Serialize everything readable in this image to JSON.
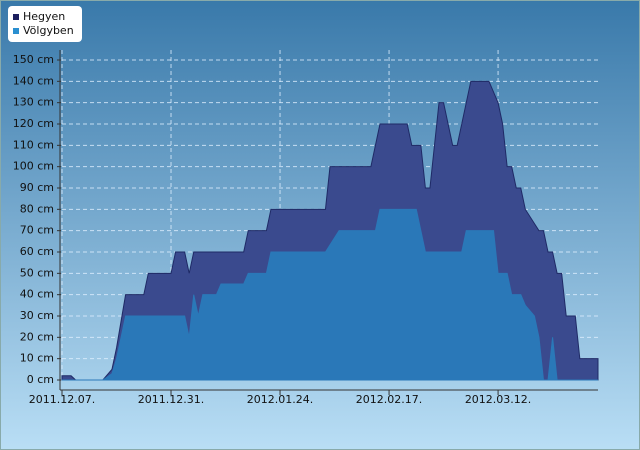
{
  "chart_data": {
    "type": "area",
    "series": [
      {
        "name": "Hegyen",
        "color": "#3a4a8e",
        "line_color": "#1f2a66",
        "legend_color": "#1b1f5e",
        "x": [
          "2011.12.07.",
          "2011.12.09.",
          "2011.12.10.",
          "2011.12.16.",
          "2011.12.18.",
          "2011.12.19.",
          "2011.12.21.",
          "2011.12.25.",
          "2011.12.26.",
          "2011.12.31.",
          "2012.01.01.",
          "2012.01.03.",
          "2012.01.04.",
          "2012.01.05.",
          "2012.01.16.",
          "2012.01.17.",
          "2012.01.21.",
          "2012.01.22.",
          "2012.02.03.",
          "2012.02.04.",
          "2012.02.13.",
          "2012.02.15.",
          "2012.02.21.",
          "2012.02.22.",
          "2012.02.24.",
          "2012.02.25.",
          "2012.02.26.",
          "2012.02.28.",
          "2012.02.29.",
          "2012.03.02.",
          "2012.03.03.",
          "2012.03.06.",
          "2012.03.10.",
          "2012.03.12.",
          "2012.03.13.",
          "2012.03.14.",
          "2012.03.15.",
          "2012.03.16.",
          "2012.03.17.",
          "2012.03.18.",
          "2012.03.21.",
          "2012.03.22.",
          "2012.03.23.",
          "2012.03.24.",
          "2012.03.25.",
          "2012.03.26.",
          "2012.03.27.",
          "2012.03.29.",
          "2012.03.30.",
          "2012.04.03."
        ],
        "values": [
          2,
          2,
          0,
          0,
          5,
          15,
          40,
          40,
          50,
          50,
          60,
          60,
          50,
          60,
          60,
          70,
          70,
          80,
          80,
          100,
          100,
          120,
          120,
          110,
          110,
          90,
          90,
          130,
          130,
          110,
          110,
          140,
          140,
          130,
          120,
          100,
          100,
          90,
          90,
          80,
          70,
          70,
          60,
          60,
          50,
          50,
          30,
          30,
          10,
          10
        ]
      },
      {
        "name": "Völgyben",
        "color": "#2a78b8",
        "line_color": "#2a78b8",
        "legend_color": "#2a8fd0",
        "x": [
          "2011.12.07.",
          "2011.12.16.",
          "2011.12.18.",
          "2011.12.19.",
          "2011.12.21.",
          "2012.01.03.",
          "2012.01.04.",
          "2012.01.05.",
          "2012.01.06.",
          "2012.01.07.",
          "2012.01.10.",
          "2012.01.11.",
          "2012.01.16.",
          "2012.01.17.",
          "2012.01.21.",
          "2012.01.22.",
          "2012.02.03.",
          "2012.02.06.",
          "2012.02.14.",
          "2012.02.15.",
          "2012.02.23.",
          "2012.02.25.",
          "2012.03.04.",
          "2012.03.05.",
          "2012.03.11.",
          "2012.03.12.",
          "2012.03.14.",
          "2012.03.15.",
          "2012.03.17.",
          "2012.03.18.",
          "2012.03.20.",
          "2012.03.21.",
          "2012.03.22.",
          "2012.03.23.",
          "2012.03.24.",
          "2012.03.25.",
          "2012.04.03."
        ],
        "values": [
          0,
          0,
          3,
          10,
          30,
          30,
          20,
          40,
          30,
          40,
          40,
          45,
          45,
          50,
          50,
          60,
          60,
          70,
          70,
          80,
          80,
          60,
          60,
          70,
          70,
          50,
          50,
          40,
          40,
          35,
          30,
          20,
          0,
          0,
          20,
          0,
          0
        ]
      }
    ],
    "xlim": [
      "2011.12.07.",
      "2012.04.03."
    ],
    "xticks": [
      "2011.12.07.",
      "2011.12.31.",
      "2012.01.24.",
      "2012.02.17.",
      "2012.03.12."
    ],
    "ylim": [
      0,
      150
    ],
    "yticks": [
      {
        "value": 0,
        "label": "0 cm"
      },
      {
        "value": 10,
        "label": "10 cm"
      },
      {
        "value": 20,
        "label": "20 cm"
      },
      {
        "value": 30,
        "label": "30 cm"
      },
      {
        "value": 40,
        "label": "40 cm"
      },
      {
        "value": 50,
        "label": "50 cm"
      },
      {
        "value": 60,
        "label": "60 cm"
      },
      {
        "value": 70,
        "label": "70 cm"
      },
      {
        "value": 80,
        "label": "80 cm"
      },
      {
        "value": 90,
        "label": "90 cm"
      },
      {
        "value": 100,
        "label": "100 cm"
      },
      {
        "value": 110,
        "label": "110 cm"
      },
      {
        "value": 120,
        "label": "120 cm"
      },
      {
        "value": 130,
        "label": "130 cm"
      },
      {
        "value": 140,
        "label": "140 cm"
      },
      {
        "value": 150,
        "label": "150 cm"
      }
    ],
    "grid": true
  }
}
